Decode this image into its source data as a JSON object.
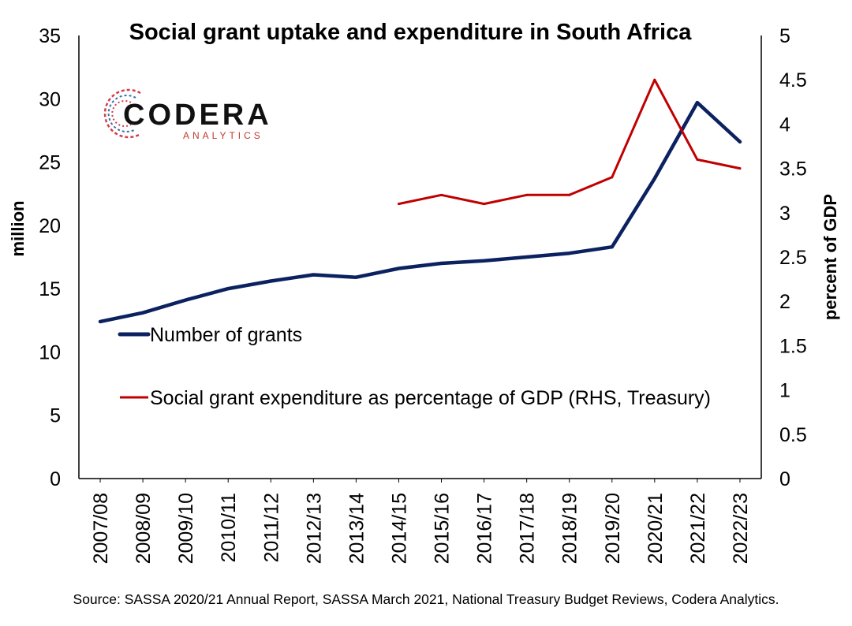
{
  "chart_data": {
    "type": "line",
    "title": "Social grant uptake and expenditure in South Africa",
    "categories": [
      "2007/08",
      "2008/09",
      "2009/10",
      "2010/11",
      "2011/12",
      "2012/13",
      "2013/14",
      "2014/15",
      "2015/16",
      "2016/17",
      "2017/18",
      "2018/19",
      "2019/20",
      "2020/21",
      "2021/22",
      "2022/23"
    ],
    "ylabel_left": "million",
    "ylabel_right": "percent of GDP",
    "ylim_left": [
      0,
      35
    ],
    "yticks_left": [
      0,
      5,
      10,
      15,
      20,
      25,
      30,
      35
    ],
    "ylim_right": [
      0,
      5
    ],
    "yticks_right": [
      "0",
      "0.5",
      "1",
      "1.5",
      "2",
      "2.5",
      "3",
      "3.5",
      "4",
      "4.5",
      "5"
    ],
    "grid": false,
    "legend_placement": "middle-left",
    "series": [
      {
        "name": "Number of grants",
        "axis": "left",
        "color": "#0b2160",
        "values": [
          12.4,
          13.1,
          14.1,
          15.0,
          15.6,
          16.1,
          15.9,
          16.6,
          17.0,
          17.2,
          17.5,
          17.8,
          18.3,
          23.7,
          29.7,
          26.6
        ]
      },
      {
        "name": "Social grant expenditure as percentage of GDP (RHS, Treasury)",
        "axis": "right",
        "color": "#c00000",
        "values": [
          null,
          null,
          null,
          null,
          null,
          null,
          null,
          3.1,
          3.2,
          3.1,
          3.2,
          3.2,
          3.4,
          4.5,
          3.6,
          3.5
        ]
      }
    ],
    "source": "Source: SASSA 2020/21 Annual Report, SASSA March 2021, National Treasury Budget Reviews, Codera Analytics."
  },
  "logo": {
    "word": "CODERA",
    "sub": "ANALYTICS",
    "colors": {
      "word": "#111111",
      "sub": "#c0392b",
      "mark_red": "#d23c4b",
      "mark_blue": "#3a6ea5"
    }
  }
}
